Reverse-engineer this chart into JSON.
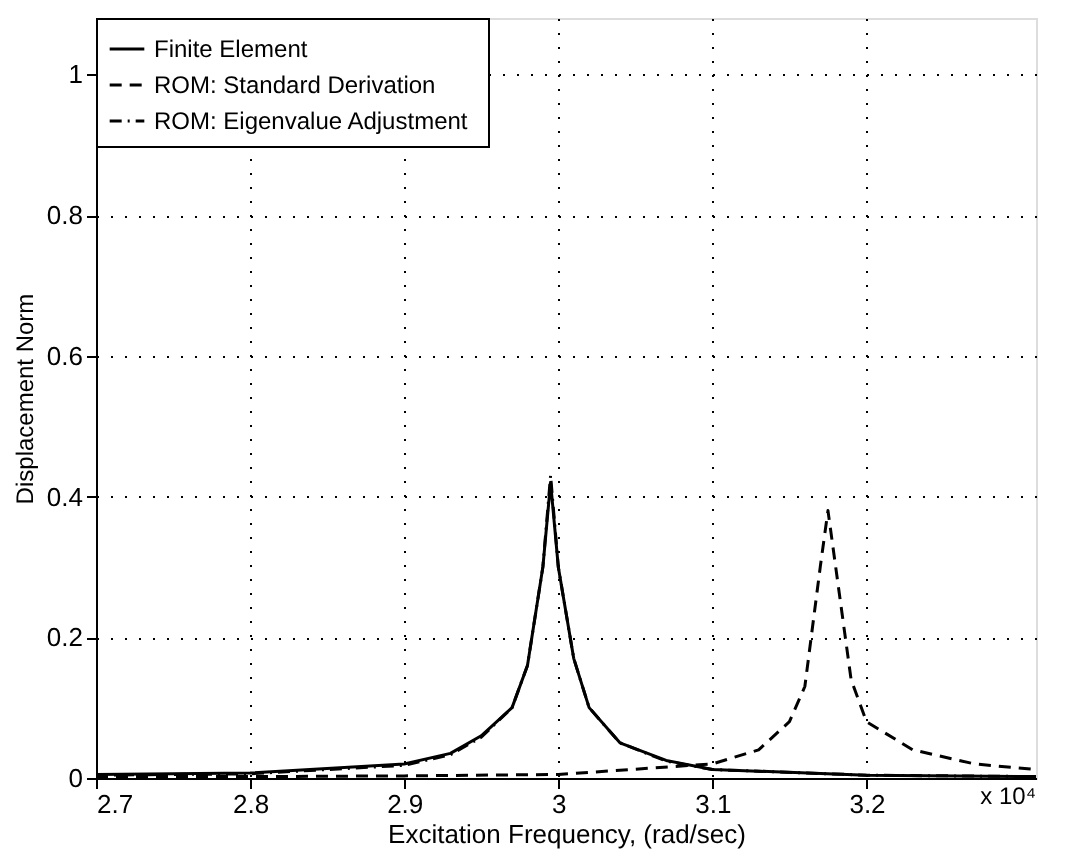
{
  "chart_data": {
    "type": "line",
    "xlabel": "Excitation Frequency, (rad/sec)",
    "ylabel": "Displacement Norm",
    "annotations": [
      "x 10⁴"
    ],
    "xlim": [
      2.7,
      3.31
    ],
    "xticks": [
      2.7,
      2.8,
      2.9,
      3,
      3.1,
      3.2
    ],
    "ylim": [
      0,
      1.08
    ],
    "yticks": [
      0,
      0.2,
      0.4,
      0.6,
      0.8,
      1
    ],
    "grid": true,
    "legend": "top left",
    "marker": "none",
    "series": [
      {
        "name": "Finite Element",
        "color": "#000000",
        "line_style": "solid",
        "x": [
          2.7,
          2.8,
          2.9,
          2.93,
          2.95,
          2.97,
          2.98,
          2.99,
          2.995,
          3.0,
          3.01,
          3.02,
          3.04,
          3.07,
          3.1,
          3.2,
          3.31
        ],
        "values": [
          0.005,
          0.007,
          0.02,
          0.035,
          0.06,
          0.1,
          0.16,
          0.3,
          0.42,
          0.3,
          0.17,
          0.1,
          0.05,
          0.025,
          0.012,
          0.004,
          0.002
        ]
      },
      {
        "name": "ROM:  Standard Derivation",
        "color": "#000000",
        "line_style": "dashed",
        "x": [
          2.7,
          2.8,
          2.9,
          3.0,
          3.1,
          3.13,
          3.15,
          3.16,
          3.17,
          3.175,
          3.18,
          3.19,
          3.2,
          3.23,
          3.27,
          3.31
        ],
        "values": [
          0.002,
          0.002,
          0.003,
          0.005,
          0.02,
          0.04,
          0.08,
          0.13,
          0.3,
          0.38,
          0.3,
          0.14,
          0.08,
          0.04,
          0.02,
          0.012
        ]
      },
      {
        "name": "ROM:  Eigenvalue Adjustment",
        "color": "#000000",
        "line_style": "dashdot",
        "x": [
          2.7,
          2.8,
          2.9,
          2.93,
          2.95,
          2.97,
          2.98,
          2.99,
          2.995,
          3.0,
          3.01,
          3.02,
          3.04,
          3.07,
          3.1,
          3.2,
          3.31
        ],
        "values": [
          0.004,
          0.006,
          0.018,
          0.033,
          0.058,
          0.1,
          0.16,
          0.3,
          0.43,
          0.3,
          0.17,
          0.1,
          0.05,
          0.024,
          0.012,
          0.004,
          0.002
        ]
      }
    ]
  }
}
